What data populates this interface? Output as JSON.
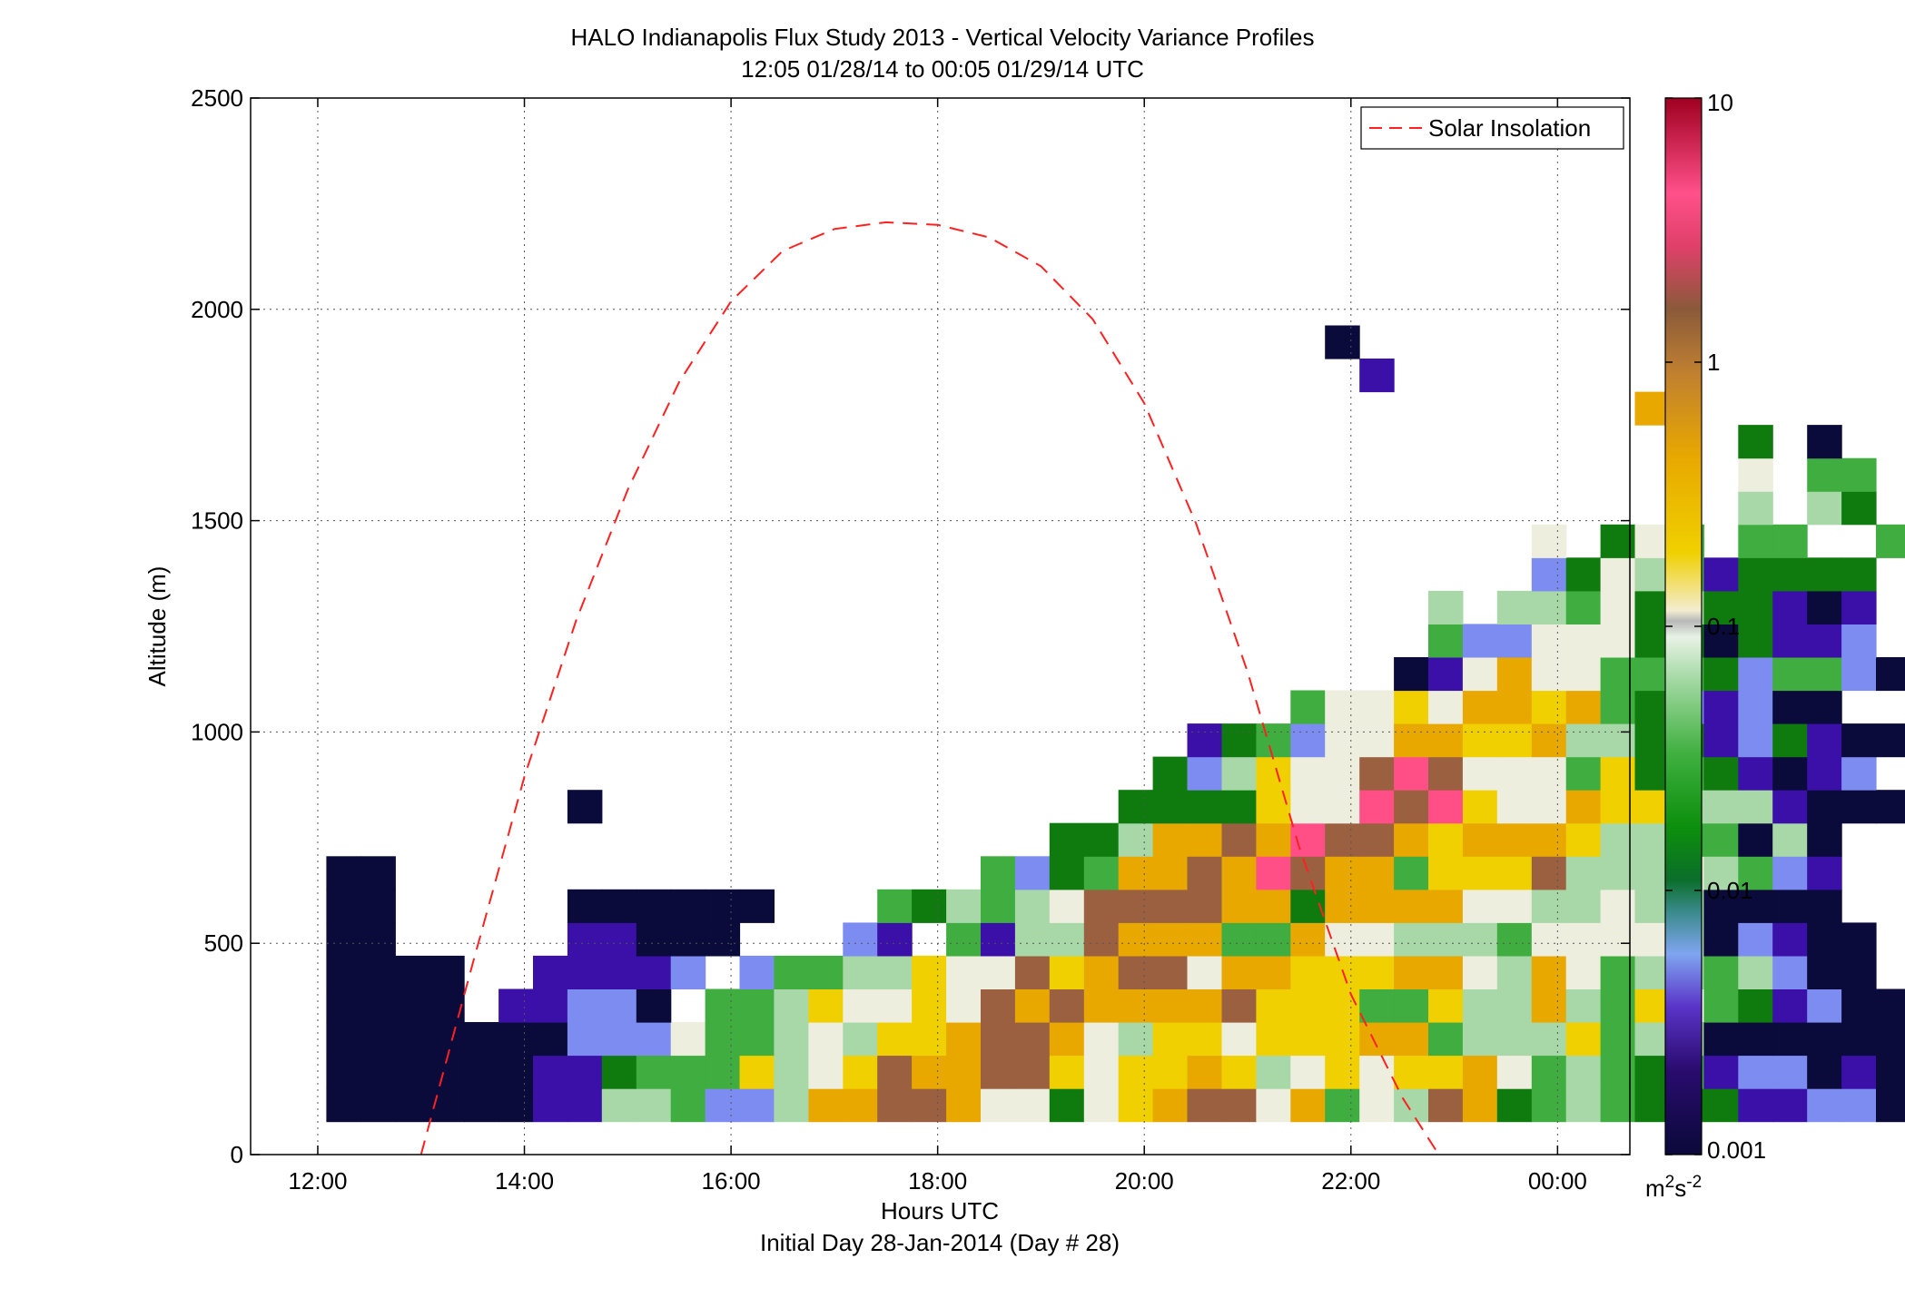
{
  "chart_data": {
    "type": "heatmap",
    "title": "HALO Indianapolis Flux Study 2013 - Vertical Velocity Variance Profiles",
    "subtitle": "12:05 01/28/14 to 00:05 01/29/14  UTC",
    "xlabel": "Hours UTC",
    "xlabel2": "Initial Day 28-Jan-2014 (Day # 28)",
    "ylabel": "Altitude (m)",
    "xlim": [
      11.35,
      24.7
    ],
    "ylim": [
      0,
      2500
    ],
    "x_ticks": [
      12,
      14,
      16,
      18,
      20,
      22,
      24
    ],
    "x_tick_labels": [
      "12:00",
      "14:00",
      "16:00",
      "18:00",
      "20:00",
      "22:00",
      "00:00"
    ],
    "y_ticks": [
      0,
      500,
      1000,
      1500,
      2000,
      2500
    ],
    "y_tick_labels": [
      "0",
      "500",
      "1000",
      "1500",
      "2000",
      "2500"
    ],
    "grid": true,
    "legend": {
      "entries": [
        "Solar Insolation"
      ],
      "placement": "top-right"
    },
    "colorbar": {
      "scale": "log",
      "range": [
        0.001,
        10
      ],
      "ticks": [
        0.001,
        0.01,
        0.1,
        1,
        10
      ],
      "tick_labels": [
        "0.001",
        "0.01",
        "0.1",
        "1",
        "10"
      ],
      "units": "m²s⁻²",
      "units_base": "m",
      "units_exp1": "2",
      "units_mid": "s",
      "units_exp2": "-2"
    },
    "grid_cells": {
      "t0": 12.0833,
      "dt": 0.3333,
      "z0": 78,
      "dz": 78.5,
      "code_legend": {
        "0": "0.001",
        "1": "0.003",
        "2": "0.005",
        "3": "0.01",
        "4": "0.02",
        "5": "0.05",
        "6": "0.1",
        "7": "0.2",
        "8": "0.5",
        "9": "1.5",
        "A": "5"
      },
      "rows": [
        "0000001155422588998663678996846598345433311220",
        "0000001134447567988997677875676778645434122010",
        "0000000222644565778998657767778845557455000000",
        "0000-11220-4457667698988889777447558547-431200",
        "0000--11112-244557669789968877788658645545200",
        "00-----11000---21-415598884486655546666502100",
        "00-----000000---4354569999883888866556550000",
        "00-----------------42348898A9884777955565421",
        "---------------------3358898A998788875544050",
        "-------0---------------3333766A9A7668775551000",
        "------------------------3257669A9666473431012",
        "-------------------------1342668877855331231002",
        "----------------------------4667688784321200",
        "-------------------------------016866444324420",
        "--------------------------------4226663303112",
        "--------------------------------5-55463533101",
        "-----------------------------------2365413333",
        "-----------------------------------6-364-44--4",
        "-----------------------------------------5-53",
        "-----------------------------------------6-44",
        "-----------------------------------------3-0-",
        "--------------------------------------8--",
        "------------------------------1",
        "-----------------------------0"
      ]
    },
    "series": [
      {
        "name": "Solar Insolation",
        "style": "red dashed",
        "x": [
          13.0,
          13.5,
          14.0,
          14.5,
          15.0,
          15.5,
          16.0,
          16.5,
          17.0,
          17.5,
          18.0,
          18.5,
          19.0,
          19.5,
          20.0,
          20.5,
          21.0,
          21.5,
          22.0,
          22.5,
          22.85
        ],
        "y": [
          0,
          452,
          894,
          1263,
          1573,
          1829,
          2019,
          2138,
          2190,
          2206,
          2200,
          2170,
          2102,
          1977,
          1778,
          1494,
          1142,
          727,
          379,
          134,
          0
        ]
      }
    ]
  }
}
